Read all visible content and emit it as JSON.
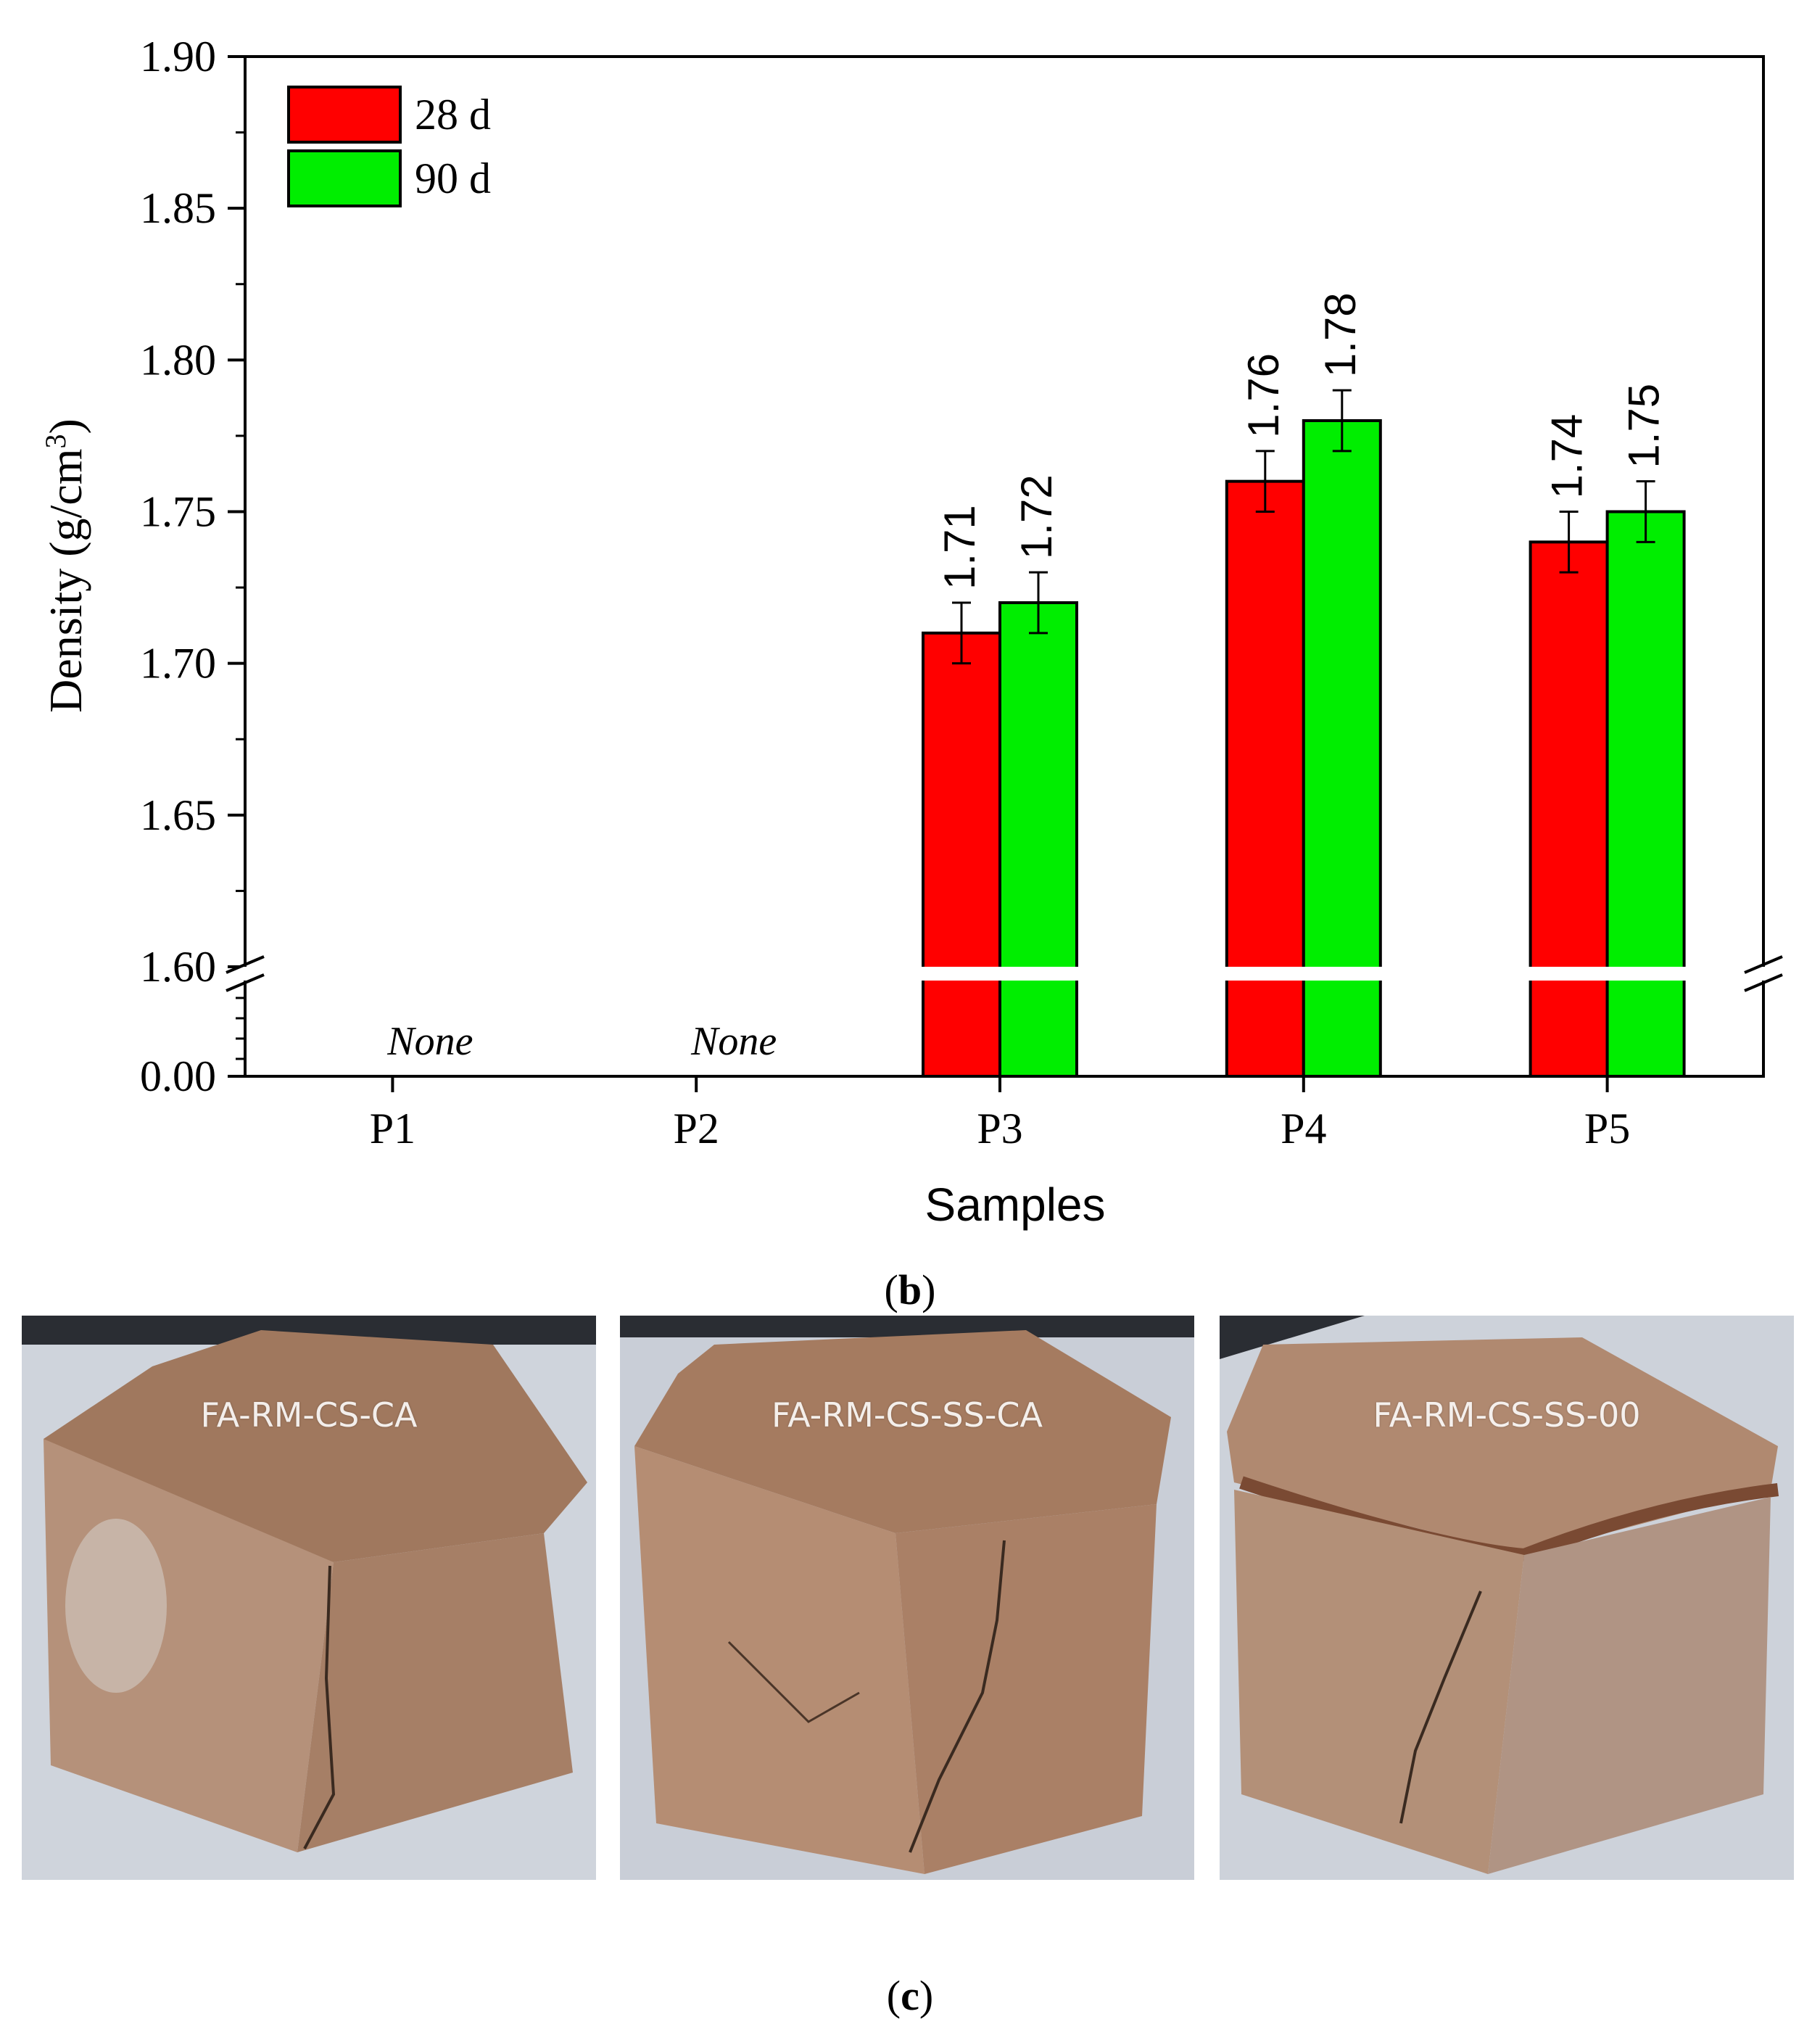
{
  "chart_data": {
    "type": "bar",
    "panel_label": "b",
    "xlabel": "Samples",
    "ylabel": "Density (g/cm",
    "ylabel_superscript": "3",
    "ylabel_suffix": ")",
    "categories": [
      "P1",
      "P2",
      "P3",
      "P4",
      "P5"
    ],
    "series": [
      {
        "name": "28 d",
        "color": "#ff0000",
        "values": [
          null,
          null,
          1.71,
          1.76,
          1.74
        ],
        "errors": [
          null,
          null,
          0.01,
          0.01,
          0.01
        ],
        "labels": [
          "",
          "",
          "1.71",
          "1.76",
          "1.74"
        ]
      },
      {
        "name": "90 d",
        "color": "#00ee00",
        "values": [
          null,
          null,
          1.72,
          1.78,
          1.75
        ],
        "errors": [
          null,
          null,
          0.01,
          0.01,
          0.01
        ],
        "labels": [
          "",
          "",
          "1.72",
          "1.78",
          "1.75"
        ]
      }
    ],
    "missing_label": "None",
    "missing_categories": [
      "P1",
      "P2"
    ],
    "y_ticks": [
      "0.00",
      "1.60",
      "1.65",
      "1.70",
      "1.75",
      "1.80",
      "1.85",
      "1.90"
    ],
    "ylim_upper": [
      1.6,
      1.9
    ],
    "ylim_lower": [
      0.0,
      0.0
    ],
    "axis_break": true,
    "legend_position": "top-left",
    "grid": false
  },
  "photos": {
    "panel_label": "c",
    "items": [
      {
        "caption": "FA-RM-CS-CA"
      },
      {
        "caption": "FA-RM-CS-SS-CA"
      },
      {
        "caption": "FA-RM-CS-SS-00"
      }
    ]
  }
}
